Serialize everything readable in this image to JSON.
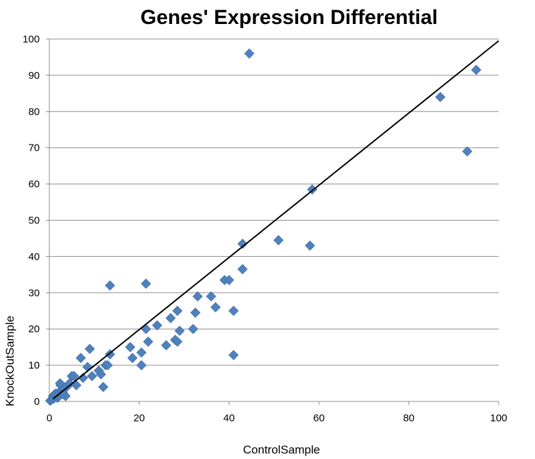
{
  "chart_data": {
    "type": "scatter",
    "title": "Genes' Expression  Differential",
    "xlabel": "ControlSample",
    "ylabel": "KnockOutSample",
    "xlim": [
      0,
      100
    ],
    "ylim": [
      0,
      100
    ],
    "x_ticks": [
      0,
      20,
      40,
      60,
      80,
      100
    ],
    "y_ticks": [
      0,
      10,
      20,
      30,
      40,
      50,
      60,
      70,
      80,
      90,
      100
    ],
    "grid": "horizontal",
    "marker": "diamond",
    "colors": {
      "point": "#4f81bd",
      "trendline": "#000000",
      "grid": "#8c8c8c"
    },
    "trendline": {
      "x": [
        0.8,
        100
      ],
      "y": [
        0.7,
        99.5
      ]
    },
    "series": [
      {
        "x": [
          0.2,
          0.5,
          0.8,
          1.0,
          1.2,
          1.5,
          1.8,
          2.0,
          2.2,
          2.5,
          2.8,
          3.0,
          3.3,
          3.6,
          4.0,
          4.5,
          5.0,
          5.5,
          6.0,
          2.4,
          3.0,
          7.0,
          7.5,
          9.0,
          9.5,
          11.0,
          11.5,
          12.0,
          12.5,
          13.0,
          13.5,
          13.5,
          18.0,
          18.5,
          20.5,
          20.5,
          21.5,
          22.0,
          21.5,
          24.0,
          26.0,
          27.0,
          28.0,
          28.5,
          28.5,
          29.0,
          32.0,
          32.5,
          33.0,
          36.0,
          37.0,
          39.0,
          40.0,
          41.0,
          41.0,
          43.0,
          43.0,
          44.5,
          51.0,
          58.0,
          58.5,
          87.0,
          93.0,
          95.0,
          8.5
        ],
        "y": [
          0.2,
          0.5,
          1.5,
          0.8,
          2.0,
          2.2,
          1.0,
          1.5,
          2.5,
          4.5,
          3.0,
          2.5,
          3.5,
          1.5,
          4.2,
          5.0,
          7.0,
          7.0,
          4.5,
          5.0,
          2.0,
          12.0,
          6.5,
          14.5,
          7.0,
          8.5,
          7.5,
          4.0,
          10.0,
          10.0,
          32.0,
          13.0,
          15.0,
          12.0,
          10.0,
          13.5,
          32.5,
          16.5,
          20.0,
          21.0,
          15.5,
          23.0,
          17.0,
          16.5,
          25.0,
          19.5,
          20.0,
          24.5,
          29.0,
          29.0,
          26.0,
          33.5,
          33.5,
          25.0,
          12.8,
          43.5,
          36.5,
          96.0,
          44.5,
          43.0,
          58.5,
          84.0,
          69.0,
          91.5,
          9.5
        ]
      }
    ]
  }
}
